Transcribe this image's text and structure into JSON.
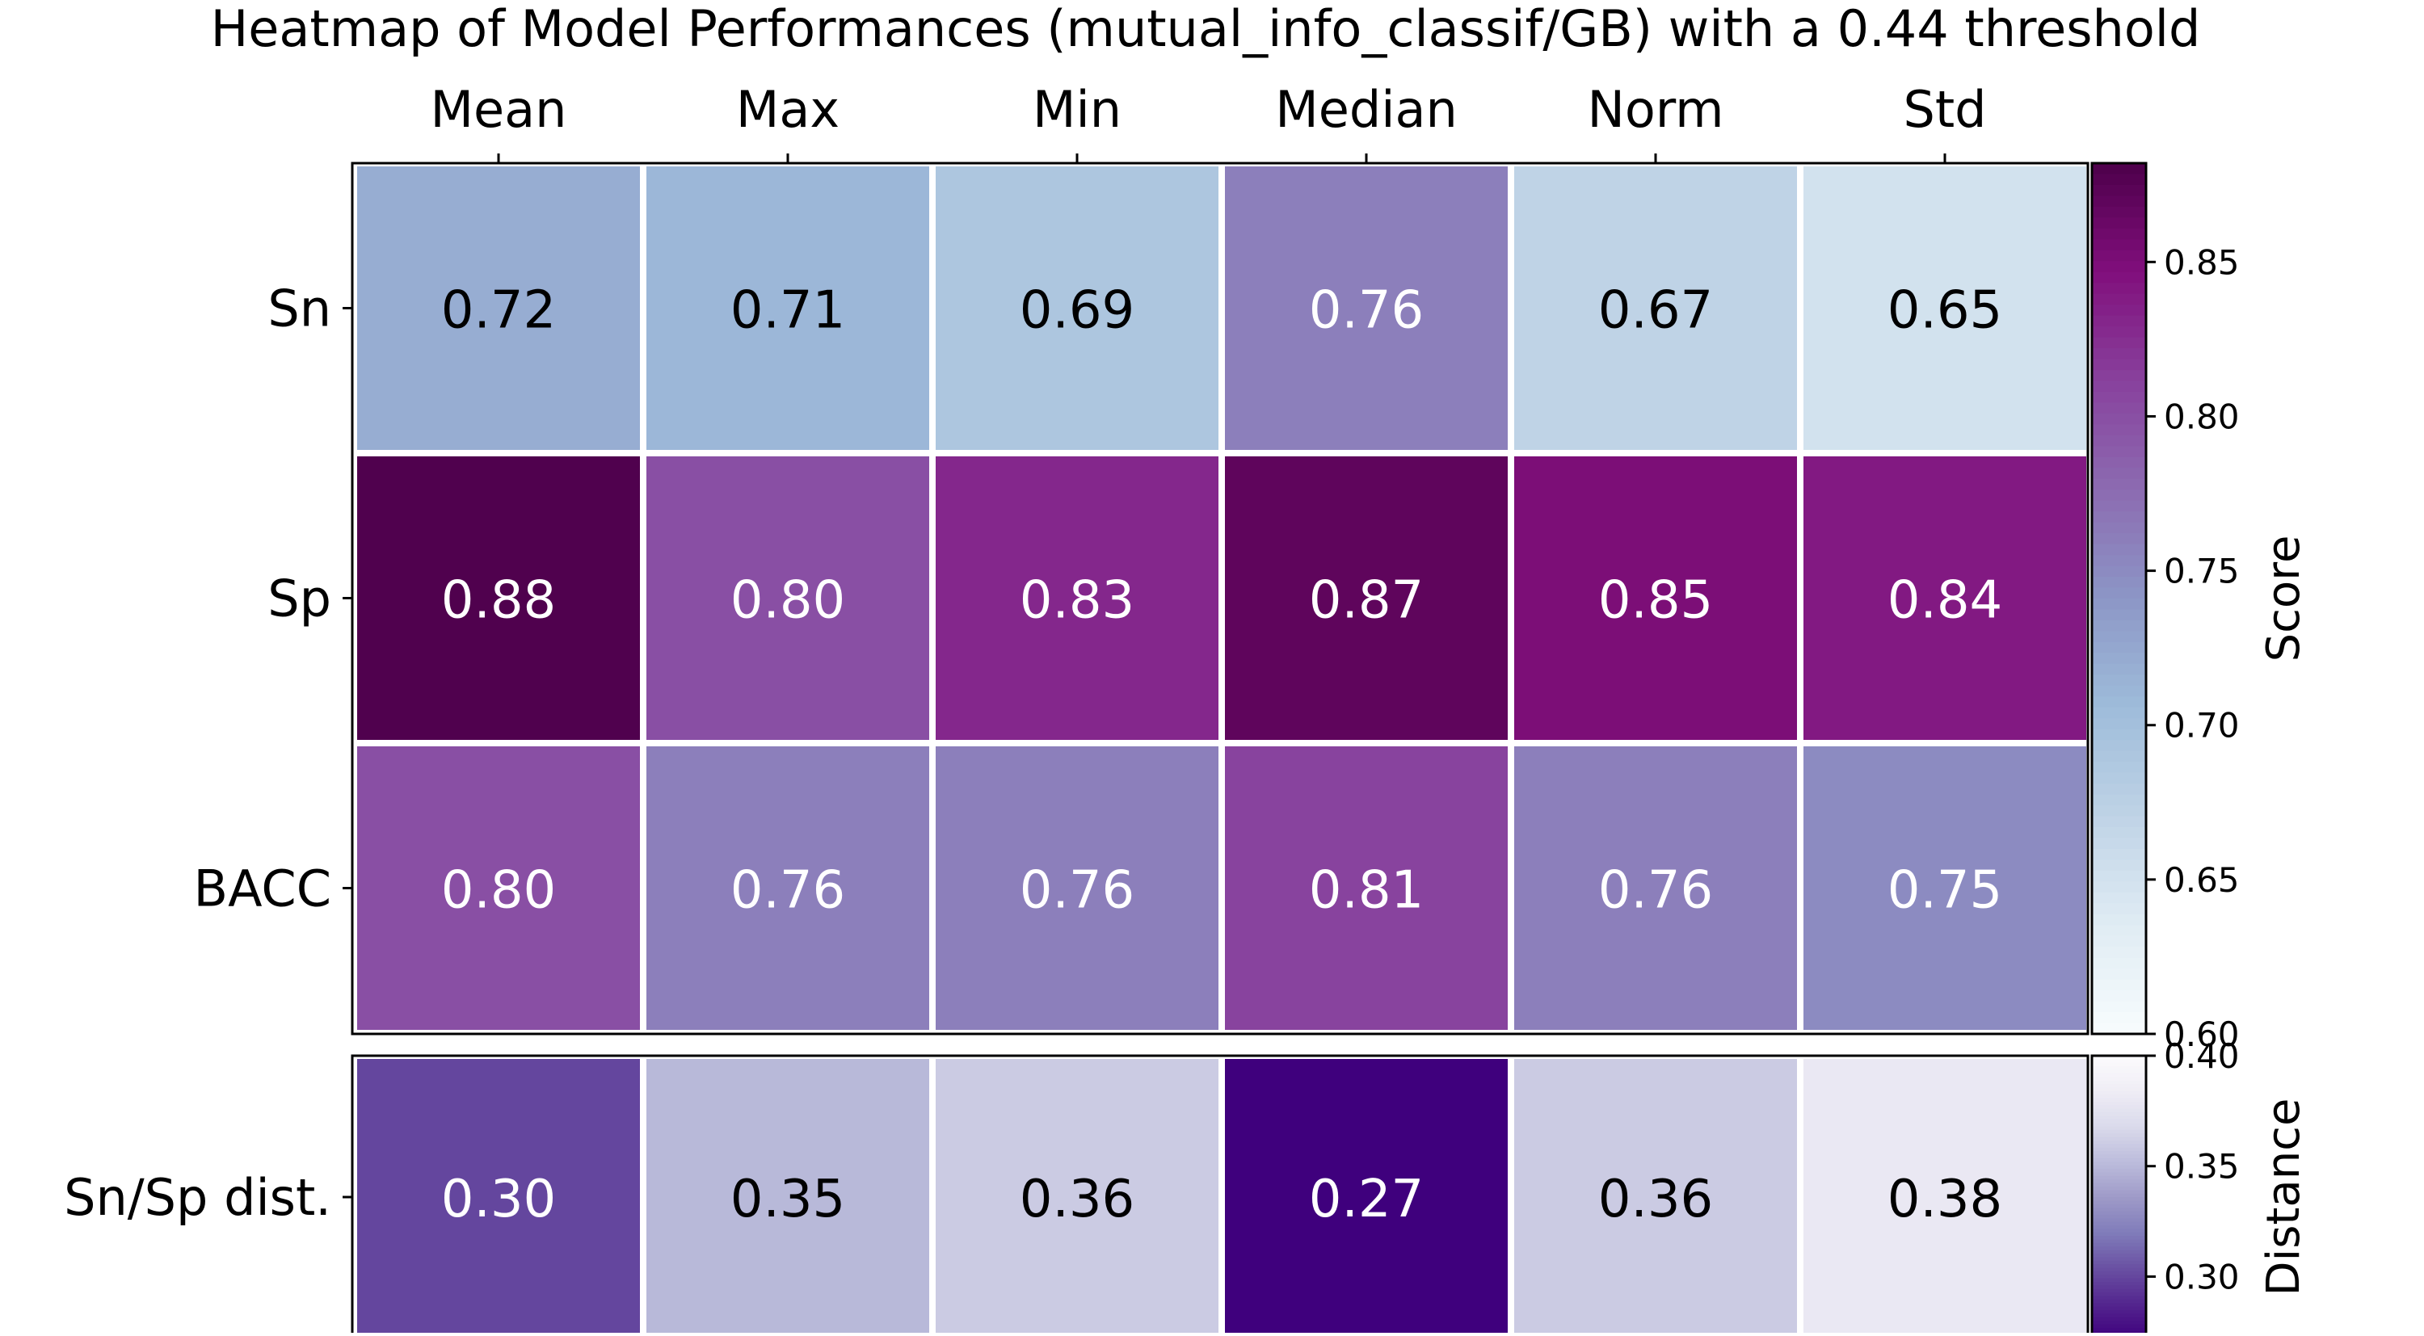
{
  "chart_data": {
    "type": "heatmap",
    "title": "Heatmap of Model Performances (mutual_info_classif/GB) with a 0.44 threshold",
    "columns": [
      "Mean",
      "Max",
      "Min",
      "Median",
      "Norm",
      "Std"
    ],
    "panels": [
      {
        "rows": [
          "Sn",
          "Sp",
          "BACC"
        ],
        "values": [
          [
            0.72,
            0.71,
            0.69,
            0.76,
            0.67,
            0.65
          ],
          [
            0.88,
            0.8,
            0.83,
            0.87,
            0.85,
            0.84
          ],
          [
            0.8,
            0.76,
            0.76,
            0.81,
            0.76,
            0.75
          ]
        ],
        "labels": [
          [
            "0.72",
            "0.71",
            "0.69",
            "0.76",
            "0.67",
            "0.65"
          ],
          [
            "0.88",
            "0.80",
            "0.83",
            "0.87",
            "0.85",
            "0.84"
          ],
          [
            "0.80",
            "0.76",
            "0.76",
            "0.81",
            "0.76",
            "0.75"
          ]
        ],
        "colormap": "BuPu",
        "vmin": 0.6,
        "vmax": 0.882,
        "colorbar_label": "Score",
        "colorbar_ticks": [
          "0.60",
          "0.65",
          "0.70",
          "0.75",
          "0.80",
          "0.85"
        ]
      },
      {
        "rows": [
          "Sn/Sp dist."
        ],
        "values": [
          [
            0.3,
            0.35,
            0.36,
            0.27,
            0.36,
            0.38
          ]
        ],
        "labels": [
          [
            "0.30",
            "0.35",
            "0.36",
            "0.27",
            "0.36",
            "0.38"
          ]
        ],
        "colormap": "Purples_r",
        "vmin": 0.272,
        "vmax": 0.4,
        "colorbar_label": "Distance",
        "colorbar_ticks": [
          "0.30",
          "0.35",
          "0.40"
        ]
      }
    ],
    "grid": false,
    "legend": "colorbars on right"
  }
}
